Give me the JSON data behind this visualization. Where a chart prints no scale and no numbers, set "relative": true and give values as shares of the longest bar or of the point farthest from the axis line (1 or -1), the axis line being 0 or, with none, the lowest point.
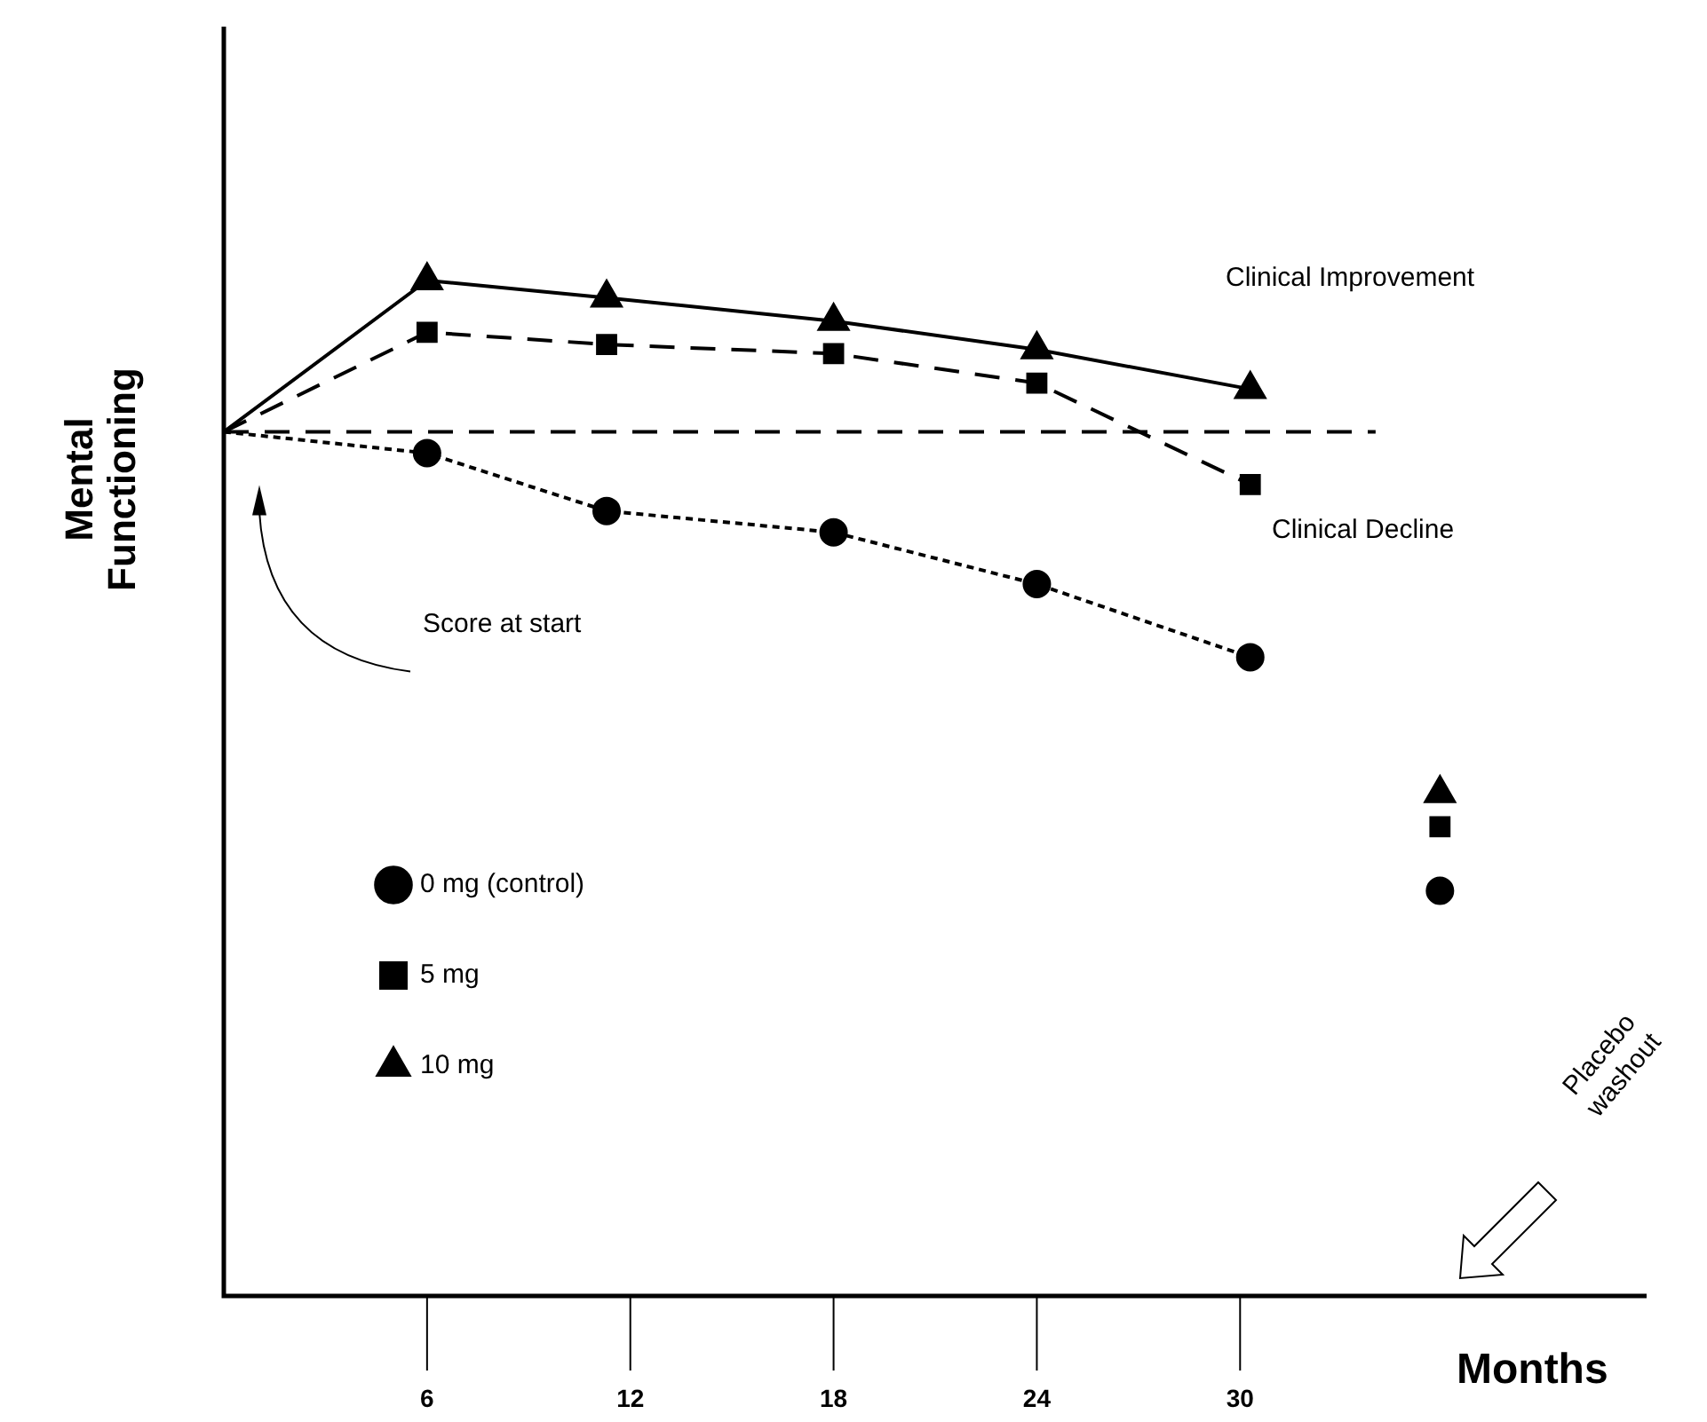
{
  "chart_data": {
    "type": "line",
    "relative": true,
    "xlabel": "Months",
    "ylabel": "Mental\nFunctioning",
    "xlim": [
      0,
      42
    ],
    "xticks": [
      6,
      12,
      18,
      24,
      30
    ],
    "grid": false,
    "legend": "left",
    "series": [
      {
        "name": "0 mg (control)",
        "color": "#000000",
        "marker": "circle",
        "line_style": "dotted",
        "x": [
          0,
          6,
          11.3,
          18,
          24,
          30.3
        ],
        "values": [
          0.851,
          0.83,
          0.773,
          0.752,
          0.701,
          0.629
        ]
      },
      {
        "name": "5 mg",
        "color": "#000000",
        "marker": "square",
        "line_style": "dashed",
        "x": [
          0,
          6,
          11.3,
          18,
          24,
          30.3
        ],
        "values": [
          0.851,
          0.949,
          0.937,
          0.928,
          0.899,
          0.799
        ]
      },
      {
        "name": "10 mg",
        "color": "#000000",
        "marker": "triangle",
        "line_style": "solid",
        "x": [
          0,
          6,
          11.3,
          18,
          24,
          30.3
        ],
        "values": [
          0.851,
          1,
          0.983,
          0.96,
          0.932,
          0.893
        ]
      },
      {
        "type": "scatter",
        "color": "#000000",
        "marker": "circle",
        "x": [
          35.9
        ],
        "values": [
          0.399
        ]
      },
      {
        "type": "scatter",
        "color": "#000000",
        "marker": "square",
        "x": [
          35.9
        ],
        "values": [
          0.462
        ]
      },
      {
        "type": "scatter",
        "color": "#000000",
        "marker": "triangle",
        "x": [
          35.9
        ],
        "values": [
          0.495
        ]
      },
      {
        "type": "line",
        "color": "#000000",
        "marker": "none",
        "line_style": "dashed",
        "x": [
          0,
          34
        ],
        "values": [
          0.851,
          0.851
        ]
      }
    ],
    "annotations": [
      "Clinical Improvement",
      "Clinical Decline",
      "Score at start",
      "Placebo\nwashout"
    ]
  }
}
